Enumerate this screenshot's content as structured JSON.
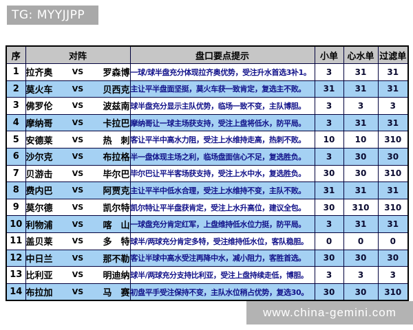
{
  "header": {
    "tg_label": "TG: MYYJJPP"
  },
  "watermark": {
    "url_text": "www.china-gemini.com"
  },
  "colors": {
    "row_highlight_blue": "#a5d1f3",
    "table_header_bg": "#c6c6c6",
    "tip_text_navy": "#12128a",
    "tg_label_bg": "#a9a9a9",
    "watermark_bg": "#b3b3b3",
    "grid_line": "#00003c"
  },
  "table": {
    "columns": [
      "序",
      "对阵",
      "盘口要点提示",
      "小单",
      "心水单",
      "过滤单"
    ],
    "vs_label": "VS",
    "rows": [
      {
        "no": "1",
        "home": "拉齐奥",
        "away": "罗森博",
        "tip": "一球/球半盘充分体现拉齐奥优势，受注升水首选3补1。",
        "xiao": "3",
        "xinshui": "31",
        "guolv": "31"
      },
      {
        "no": "2",
        "home": "莫火车",
        "away": "贝西克",
        "tip": "主让平半盘面坚挺，莫火车获一致肯定，复选主不败。",
        "xiao": "31",
        "xinshui": "31",
        "guolv": "31"
      },
      {
        "no": "3",
        "home": "佛罗伦",
        "away": "波兹南",
        "tip": "球半盘充分显示主队优势，临场一致不变，主队博胆。",
        "xiao": "3",
        "xinshui": "3",
        "guolv": "3"
      },
      {
        "no": "4",
        "home": "摩纳哥",
        "away": "卡拉巴",
        "tip": "摩纳哥让一球主场获支持，受注上盘将低水，防平局。",
        "xiao": "3",
        "xinshui": "31",
        "guolv": "31"
      },
      {
        "no": "5",
        "home": "安德莱",
        "away": "热　刺",
        "tip": "客让平半中高水力阻，受注上水维持走高，热刺不败。",
        "xiao": "10",
        "xinshui": "10",
        "guolv": "310"
      },
      {
        "no": "6",
        "home": "沙尔克",
        "away": "布拉格",
        "tip": "半一盘体现主场之利，临场盘面信心不足，复选胜负。",
        "xiao": "3",
        "xinshui": "30",
        "guolv": "30"
      },
      {
        "no": "7",
        "home": "贝游击",
        "away": "毕尔巴",
        "tip": "毕尔巴让平半客场获支持，受注上水中水，复选胜负。",
        "xiao": "30",
        "xinshui": "30",
        "guolv": "310"
      },
      {
        "no": "8",
        "home": "费内巴",
        "away": "阿贾克",
        "tip": "主让平半中低水合理，受注上水维持不变，主队不败。",
        "xiao": "31",
        "xinshui": "31",
        "guolv": "31"
      },
      {
        "no": "9",
        "home": "莫尔德",
        "away": "凯尔特",
        "tip": "凯尔特让平半盘获肯定，受注上水升高位，建议全包。",
        "xiao": "30",
        "xinshui": "310",
        "guolv": "310"
      },
      {
        "no": "10",
        "home": "利物浦",
        "away": "喀　山",
        "tip": "一球盘充分肯定红军，上盘维持低水位力挺，防平局。",
        "xiao": "3",
        "xinshui": "31",
        "guolv": "31"
      },
      {
        "no": "11",
        "home": "盖贝莱",
        "away": "多　特",
        "tip": "球半/两球充分肯定多特，受注维持低水位，客队稳胆。",
        "xiao": "0",
        "xinshui": "0",
        "guolv": "0"
      },
      {
        "no": "12",
        "home": "中日兰",
        "away": "那不勒",
        "tip": "客让半球中高水受注再降中水，减小阻力，客胜首选。",
        "xiao": "30",
        "xinshui": "30",
        "guolv": "30"
      },
      {
        "no": "13",
        "home": "比利亚",
        "away": "明迪纳",
        "tip": "球半/两球充分支持比利亚，受注上盘持续走低，博胆。",
        "xiao": "3",
        "xinshui": "3",
        "guolv": "3"
      },
      {
        "no": "14",
        "home": "布拉加",
        "away": "马　赛",
        "tip": "初盘平手受注保持不变，主队水位稍占优势，复选30。",
        "xiao": "30",
        "xinshui": "30",
        "guolv": "310"
      }
    ]
  }
}
